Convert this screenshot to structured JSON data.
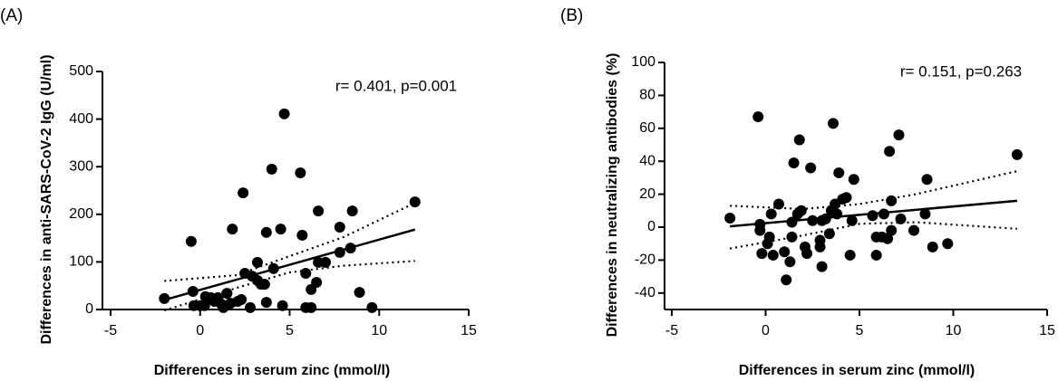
{
  "chart_data": [
    {
      "type": "scatter",
      "panel": "(A)",
      "annotation": "r= 0.401, p=0.001",
      "xlabel": "Differences in serum zinc (mmol/l)",
      "ylabel": "Differences in anti-SARS-CoV-2 IgG (U/ml)",
      "xlim": [
        -5,
        15
      ],
      "xticks": [
        -5,
        0,
        5,
        10,
        15
      ],
      "ylim": [
        0,
        500
      ],
      "yticks": [
        0,
        100,
        200,
        300,
        400,
        500
      ],
      "color": "#000000",
      "x": [
        -2.0,
        -0.5,
        -0.4,
        -0.35,
        0,
        0.25,
        0.3,
        0.6,
        0.8,
        1.0,
        1.2,
        1.3,
        1.5,
        1.7,
        1.8,
        2.1,
        2.3,
        2.4,
        2.5,
        2.8,
        2.9,
        3.2,
        3.2,
        3.4,
        3.6,
        3.7,
        3.7,
        4.0,
        4.1,
        4.5,
        4.7,
        4.6,
        5.6,
        5.7,
        5.9,
        5.9,
        6.2,
        6.2,
        6.5,
        6.6,
        6.6,
        7.0,
        7.8,
        7.8,
        8.4,
        8.5,
        8.9,
        9.6,
        12.0
      ],
      "values": [
        23,
        143,
        38,
        8,
        8,
        8,
        27,
        25,
        17,
        25,
        11,
        4,
        34,
        13,
        169,
        17,
        21,
        245,
        76,
        4,
        70,
        99,
        61,
        53,
        53,
        15,
        162,
        295,
        86,
        169,
        411,
        8,
        287,
        156,
        76,
        4,
        4,
        42,
        57,
        207,
        99,
        99,
        120,
        173,
        129,
        207,
        36,
        4,
        226
      ],
      "fit": {
        "x": [
          -2,
          12
        ],
        "values": [
          20,
          168
        ]
      },
      "ci_upper": {
        "x": [
          -2,
          2,
          5,
          8,
          12
        ],
        "values": [
          60,
          72,
          112,
          152,
          224
        ]
      },
      "ci_lower": {
        "x": [
          -2,
          2,
          5,
          8,
          12
        ],
        "values": [
          -2,
          45,
          78,
          92,
          102
        ]
      }
    },
    {
      "type": "scatter",
      "panel": "(B)",
      "annotation": "r= 0.151, p=0.263",
      "xlabel": "Differences in serum zinc (mmol/l)",
      "ylabel": "Differences in neutralizing antibodies (%)",
      "xlim": [
        -5,
        15
      ],
      "xticks": [
        -5,
        0,
        5,
        10,
        15
      ],
      "ylim": [
        -50,
        100
      ],
      "yticks": [
        -40,
        -20,
        0,
        20,
        40,
        60,
        80,
        100
      ],
      "color": "#000000",
      "x": [
        -1.9,
        -0.4,
        -0.3,
        -0.3,
        -0.2,
        0.1,
        0.2,
        0.3,
        0.4,
        0.7,
        1.0,
        1.1,
        1.3,
        1.4,
        1.4,
        1.5,
        1.7,
        1.8,
        1.9,
        2.1,
        2.2,
        2.4,
        2.5,
        2.9,
        2.9,
        3.0,
        3.0,
        3.2,
        3.4,
        3.5,
        3.6,
        3.7,
        3.8,
        3.9,
        4.1,
        4.3,
        4.5,
        4.6,
        4.7,
        5.7,
        5.9,
        5.9,
        6.2,
        6.3,
        6.5,
        6.7,
        6.6,
        6.7,
        7.1,
        7.2,
        7.9,
        8.5,
        8.6,
        8.9,
        9.7,
        13.4
      ],
      "values": [
        5.5,
        67,
        -2,
        1.7,
        -16,
        -10,
        -6,
        8,
        -17,
        14,
        -15,
        -32,
        -21,
        -6,
        3,
        39,
        8,
        53,
        10,
        -12,
        -16,
        36,
        4,
        -8,
        -12,
        -24,
        4,
        5,
        -4,
        10,
        63,
        14,
        8,
        33,
        17,
        18,
        -17,
        4,
        29,
        7,
        -6,
        -17,
        -6,
        8,
        -7,
        -2,
        46,
        16,
        56,
        5,
        -2,
        8,
        29,
        -12,
        -10,
        44
      ],
      "fit": {
        "x": [
          -1.9,
          13.4
        ],
        "values": [
          0.5,
          16
        ]
      },
      "ci_upper": {
        "x": [
          -1.9,
          2,
          5,
          8,
          13.4
        ],
        "values": [
          13,
          11,
          14,
          20,
          34
        ]
      },
      "ci_lower": {
        "x": [
          -1.9,
          2,
          5,
          8,
          13.4
        ],
        "values": [
          -13,
          -5,
          2,
          3,
          -1
        ]
      }
    }
  ]
}
